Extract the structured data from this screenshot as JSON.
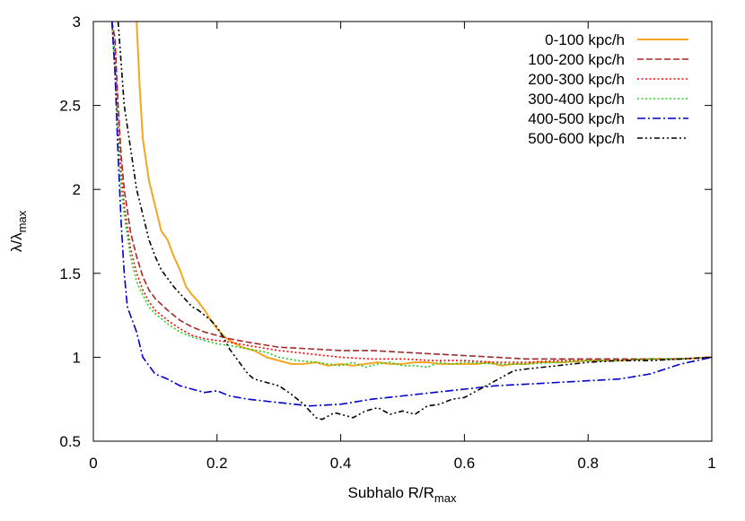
{
  "chart_data": {
    "type": "line",
    "xlabel": {
      "base": "Subhalo R/R",
      "sub": "max"
    },
    "ylabel": {
      "base": "λ/λ",
      "sub": "max"
    },
    "xlim": [
      0,
      1
    ],
    "ylim": [
      0.5,
      3
    ],
    "xticks": [
      0,
      0.2,
      0.4,
      0.6,
      0.8,
      1
    ],
    "xtick_labels": [
      "0",
      "0.2",
      "0.4",
      "0.6",
      "0.8",
      "1"
    ],
    "yticks": [
      0.5,
      1,
      1.5,
      2,
      2.5,
      3
    ],
    "ytick_labels": [
      "0.5",
      "1",
      "1.5",
      "2",
      "2.5",
      "3"
    ],
    "grid": false,
    "legend_position": "top-right",
    "series": [
      {
        "name": "0-100 kpc/h",
        "color": "#f5a623",
        "dash": "solid",
        "x": [
          0.07,
          0.075,
          0.08,
          0.09,
          0.1,
          0.11,
          0.12,
          0.13,
          0.14,
          0.15,
          0.16,
          0.17,
          0.18,
          0.19,
          0.2,
          0.21,
          0.22,
          0.24,
          0.26,
          0.28,
          0.3,
          0.32,
          0.34,
          0.36,
          0.38,
          0.4,
          0.42,
          0.44,
          0.46,
          0.48,
          0.5,
          0.52,
          0.54,
          0.56,
          0.58,
          0.6,
          0.62,
          0.64,
          0.66,
          0.68,
          0.7,
          0.72,
          0.74,
          0.76,
          0.8,
          0.85,
          0.9,
          0.95,
          1.0
        ],
        "y": [
          3.0,
          2.6,
          2.3,
          2.05,
          1.9,
          1.75,
          1.7,
          1.6,
          1.52,
          1.42,
          1.37,
          1.33,
          1.28,
          1.22,
          1.17,
          1.13,
          1.1,
          1.06,
          1.04,
          1.0,
          0.98,
          0.96,
          0.96,
          0.97,
          0.95,
          0.96,
          0.95,
          0.96,
          0.97,
          0.96,
          0.96,
          0.97,
          0.97,
          0.96,
          0.96,
          0.96,
          0.96,
          0.97,
          0.95,
          0.96,
          0.96,
          0.97,
          0.97,
          0.97,
          0.98,
          0.98,
          0.99,
          0.99,
          1.0
        ]
      },
      {
        "name": "100-200 kpc/h",
        "color": "#a52a2a",
        "dash": "dashed",
        "x": [
          0.03,
          0.035,
          0.04,
          0.045,
          0.05,
          0.06,
          0.07,
          0.08,
          0.09,
          0.1,
          0.12,
          0.14,
          0.16,
          0.18,
          0.2,
          0.22,
          0.25,
          0.3,
          0.35,
          0.4,
          0.45,
          0.5,
          0.55,
          0.6,
          0.65,
          0.7,
          0.75,
          0.8,
          0.85,
          0.9,
          0.95,
          1.0
        ],
        "y": [
          3.0,
          2.9,
          2.5,
          2.2,
          2.0,
          1.75,
          1.6,
          1.48,
          1.4,
          1.35,
          1.28,
          1.22,
          1.18,
          1.15,
          1.13,
          1.11,
          1.09,
          1.06,
          1.05,
          1.04,
          1.04,
          1.03,
          1.02,
          1.01,
          1.0,
          0.99,
          0.99,
          0.99,
          0.99,
          0.99,
          0.99,
          1.0
        ]
      },
      {
        "name": "200-300 kpc/h",
        "color": "#ff0000",
        "dash": "dotted",
        "x": [
          0.03,
          0.035,
          0.04,
          0.045,
          0.05,
          0.06,
          0.07,
          0.08,
          0.09,
          0.1,
          0.12,
          0.14,
          0.16,
          0.18,
          0.2,
          0.22,
          0.25,
          0.3,
          0.35,
          0.4,
          0.45,
          0.5,
          0.55,
          0.6,
          0.65,
          0.7,
          0.75,
          0.8,
          0.85,
          0.9,
          0.95,
          1.0
        ],
        "y": [
          3.0,
          2.8,
          2.4,
          2.1,
          1.9,
          1.65,
          1.5,
          1.4,
          1.33,
          1.28,
          1.22,
          1.17,
          1.13,
          1.11,
          1.1,
          1.09,
          1.07,
          1.04,
          1.02,
          1.0,
          0.99,
          0.99,
          0.98,
          0.98,
          0.97,
          0.97,
          0.98,
          0.98,
          0.98,
          0.99,
          0.99,
          1.0
        ]
      },
      {
        "name": "300-400 kpc/h",
        "color": "#22cc22",
        "dash": "dotted",
        "x": [
          0.03,
          0.035,
          0.04,
          0.045,
          0.05,
          0.06,
          0.07,
          0.08,
          0.09,
          0.1,
          0.12,
          0.14,
          0.16,
          0.18,
          0.2,
          0.22,
          0.25,
          0.28,
          0.3,
          0.33,
          0.36,
          0.38,
          0.4,
          0.42,
          0.44,
          0.46,
          0.48,
          0.5,
          0.52,
          0.54,
          0.56,
          0.58,
          0.6,
          0.65,
          0.7,
          0.75,
          0.8,
          0.85,
          0.9,
          0.95,
          1.0
        ],
        "y": [
          3.0,
          2.7,
          2.3,
          2.0,
          1.85,
          1.6,
          1.45,
          1.37,
          1.3,
          1.26,
          1.2,
          1.15,
          1.12,
          1.1,
          1.08,
          1.07,
          1.05,
          1.03,
          1.0,
          0.98,
          0.97,
          0.96,
          0.95,
          0.97,
          0.94,
          0.96,
          0.97,
          0.95,
          0.95,
          0.94,
          0.97,
          0.96,
          0.97,
          0.96,
          0.96,
          0.97,
          0.98,
          0.98,
          0.99,
          0.99,
          1.0
        ]
      },
      {
        "name": "400-500 kpc/h",
        "color": "#0000cc",
        "dash": "dashdot",
        "x": [
          0.03,
          0.035,
          0.04,
          0.045,
          0.05,
          0.055,
          0.06,
          0.07,
          0.08,
          0.09,
          0.1,
          0.12,
          0.14,
          0.16,
          0.18,
          0.2,
          0.22,
          0.25,
          0.3,
          0.35,
          0.4,
          0.45,
          0.5,
          0.55,
          0.6,
          0.65,
          0.7,
          0.75,
          0.8,
          0.85,
          0.9,
          0.95,
          1.0
        ],
        "y": [
          3.0,
          2.7,
          2.2,
          1.8,
          1.5,
          1.3,
          1.25,
          1.15,
          1.0,
          0.95,
          0.9,
          0.87,
          0.83,
          0.81,
          0.79,
          0.8,
          0.77,
          0.75,
          0.73,
          0.71,
          0.72,
          0.75,
          0.77,
          0.79,
          0.81,
          0.83,
          0.84,
          0.85,
          0.86,
          0.87,
          0.9,
          0.96,
          1.0
        ]
      },
      {
        "name": "500-600 kpc/h",
        "color": "#000000",
        "dash": "dashdotdot",
        "x": [
          0.04,
          0.05,
          0.06,
          0.07,
          0.08,
          0.09,
          0.1,
          0.11,
          0.12,
          0.13,
          0.14,
          0.15,
          0.16,
          0.17,
          0.18,
          0.19,
          0.2,
          0.21,
          0.22,
          0.23,
          0.24,
          0.25,
          0.26,
          0.28,
          0.3,
          0.32,
          0.34,
          0.35,
          0.36,
          0.37,
          0.38,
          0.39,
          0.4,
          0.42,
          0.44,
          0.46,
          0.48,
          0.5,
          0.52,
          0.54,
          0.56,
          0.58,
          0.6,
          0.62,
          0.64,
          0.66,
          0.68,
          0.7,
          0.75,
          0.8,
          0.85,
          0.9,
          0.95,
          1.0
        ],
        "y": [
          3.0,
          2.5,
          2.25,
          2.0,
          1.85,
          1.7,
          1.6,
          1.52,
          1.47,
          1.42,
          1.38,
          1.34,
          1.3,
          1.28,
          1.25,
          1.22,
          1.18,
          1.12,
          1.05,
          1.0,
          0.95,
          0.9,
          0.87,
          0.85,
          0.83,
          0.78,
          0.72,
          0.68,
          0.64,
          0.63,
          0.65,
          0.67,
          0.66,
          0.64,
          0.68,
          0.7,
          0.66,
          0.68,
          0.66,
          0.71,
          0.72,
          0.75,
          0.76,
          0.8,
          0.84,
          0.88,
          0.92,
          0.93,
          0.95,
          0.97,
          0.98,
          0.98,
          0.99,
          1.0
        ]
      }
    ]
  }
}
